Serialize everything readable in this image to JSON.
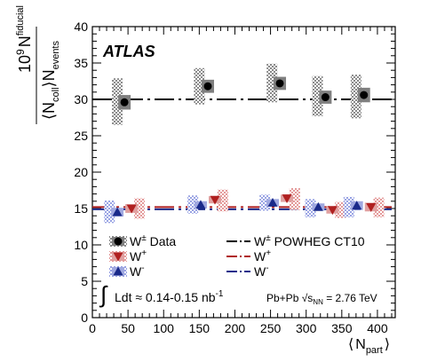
{
  "chart_data": {
    "type": "scatter",
    "title": "",
    "x_range": [
      0,
      425
    ],
    "y_range": [
      0,
      40
    ],
    "x_ticks": [
      0,
      50,
      100,
      150,
      200,
      250,
      300,
      350,
      400
    ],
    "y_ticks": [
      0,
      5,
      10,
      15,
      20,
      25,
      30,
      35,
      40
    ],
    "x_tick_labels": [
      "0",
      "50",
      "100",
      "150",
      "200",
      "250",
      "300",
      "350",
      "400"
    ],
    "y_tick_labels": [
      "0",
      "5",
      "10",
      "15",
      "20",
      "25",
      "30",
      "35",
      "40"
    ],
    "xlabel": {
      "open": "⟨",
      "main": "N",
      "sub": "part",
      "close": "⟩"
    },
    "ylabel": {
      "num_base": "10",
      "num_exp": "9",
      "num_main": "N",
      "num_sup": "fiducial",
      "den_open": "⟨",
      "den_main": "N",
      "den_sub": "coll",
      "den_close": "⟩",
      "den_main2": "N",
      "den_sub2": "events"
    },
    "experiment_label": "ATLAS",
    "grid": false,
    "legend_position": "bottom",
    "series": [
      {
        "name": "W± Data",
        "marker": "circle",
        "color": "#000000",
        "box_color": "#7f7f7f",
        "x": [
          45,
          162,
          263,
          327,
          381
        ],
        "y": [
          29.6,
          31.8,
          32.2,
          30.3,
          30.6
        ],
        "stat_err": [
          1.0,
          0.9,
          0.9,
          0.9,
          1.0
        ],
        "syst_x": [
          35,
          150,
          252,
          316,
          370
        ],
        "syst_low": [
          26.5,
          29.3,
          29.6,
          27.7,
          27.4
        ],
        "syst_high": [
          32.9,
          34.3,
          34.9,
          33.2,
          33.4
        ]
      },
      {
        "name": "W+",
        "marker": "triangle-down",
        "color": "#b02020",
        "box_color": "#e0a0a0",
        "x": [
          55,
          172,
          273,
          337,
          391
        ],
        "y": [
          15.0,
          16.2,
          16.4,
          14.8,
          15.2
        ],
        "stat_err": [
          0.6,
          0.5,
          0.5,
          0.5,
          0.6
        ],
        "syst_x": [
          66,
          183,
          284,
          348,
          402
        ],
        "syst_low": [
          13.6,
          14.6,
          14.8,
          13.7,
          13.8
        ],
        "syst_high": [
          16.4,
          17.6,
          17.8,
          15.9,
          16.5
        ]
      },
      {
        "name": "W-",
        "marker": "triangle-up",
        "color": "#1a2a8a",
        "box_color": "#a0a8e0",
        "x": [
          35,
          152,
          253,
          317,
          371
        ],
        "y": [
          14.5,
          15.5,
          15.8,
          15.2,
          15.4
        ],
        "stat_err": [
          0.6,
          0.5,
          0.5,
          0.5,
          0.6
        ],
        "syst_x": [
          24,
          141,
          242,
          306,
          360
        ],
        "syst_low": [
          13.0,
          14.3,
          14.7,
          13.8,
          13.8
        ],
        "syst_high": [
          16.1,
          16.8,
          16.9,
          16.3,
          16.6
        ]
      }
    ],
    "theory_lines": [
      {
        "name": "W± POWHEG CT10",
        "y": 30.0,
        "color": "#000000",
        "dash": "long-dash-dot"
      },
      {
        "name": "W+",
        "y": 15.2,
        "color": "#b02020",
        "dash": "long-dash-dot"
      },
      {
        "name": "W-",
        "y": 14.9,
        "color": "#1a2a8a",
        "dash": "long-dash-dot"
      }
    ],
    "legend": {
      "data": [
        {
          "base": "W",
          "sup": "±",
          "tail": " Data"
        },
        {
          "base": "W",
          "sup": "+",
          "tail": ""
        },
        {
          "base": "W",
          "sup": "-",
          "tail": ""
        }
      ],
      "theory": [
        {
          "base": "W",
          "sup": "±",
          "tail": " POWHEG CT10"
        },
        {
          "base": "W",
          "sup": "+",
          "tail": ""
        },
        {
          "base": "W",
          "sup": "-",
          "tail": ""
        }
      ]
    },
    "annotations": {
      "lumi_integral": "∫",
      "lumi_text": "Ldt ≈ 0.14-0.15 nb",
      "lumi_exp": "-1",
      "energy_text_pre": "Pb+Pb √s",
      "energy_sub": "NN",
      "energy_text_post": " = 2.76 TeV"
    }
  }
}
